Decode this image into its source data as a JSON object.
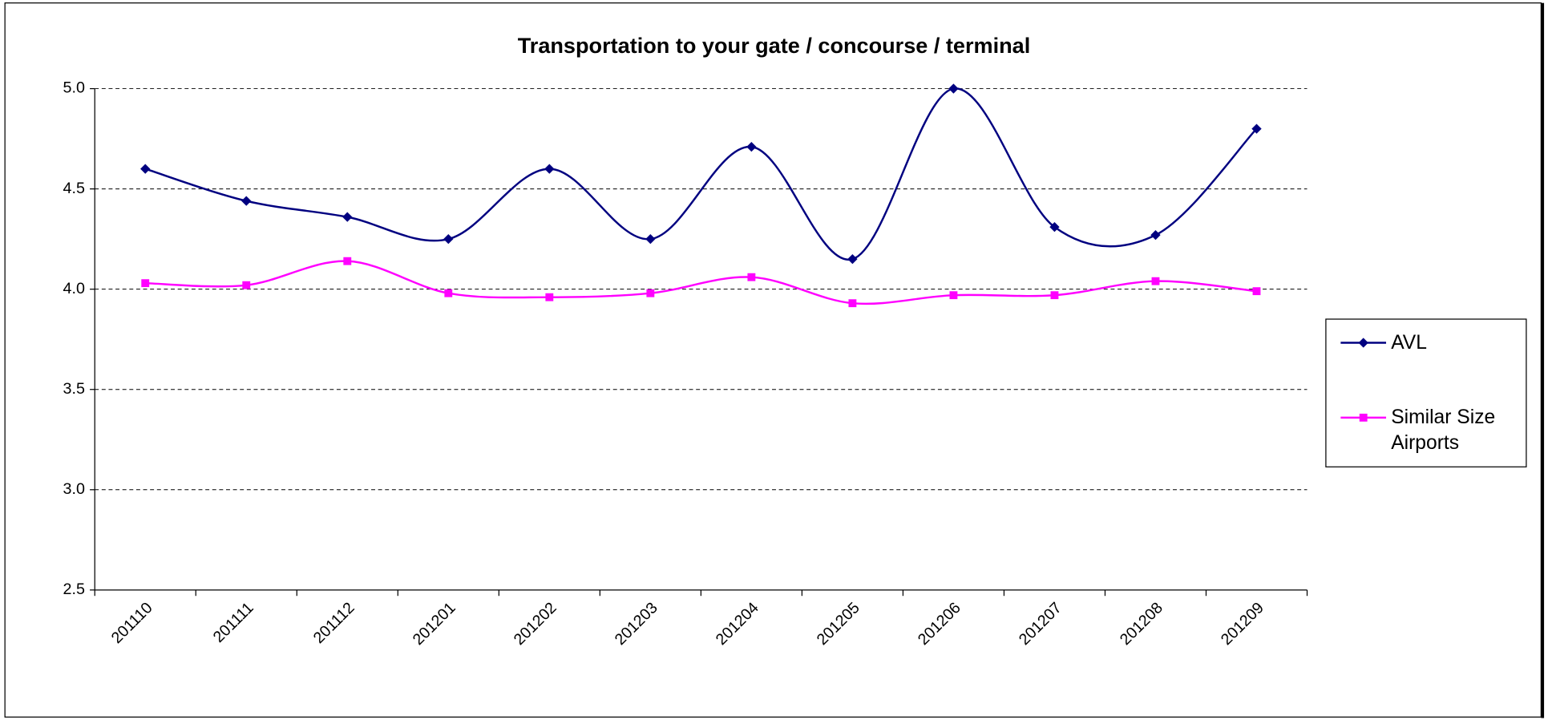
{
  "chart_data": {
    "type": "line",
    "title": "Transportation to your gate / concourse / terminal",
    "categories": [
      "201110",
      "201111",
      "201112",
      "201201",
      "201202",
      "201203",
      "201204",
      "201205",
      "201206",
      "201207",
      "201208",
      "201209"
    ],
    "series": [
      {
        "name": "AVL",
        "color": "#000080",
        "marker": "diamond",
        "values": [
          4.6,
          4.44,
          4.36,
          4.25,
          4.6,
          4.25,
          4.71,
          4.15,
          5.0,
          4.31,
          4.27,
          4.8
        ]
      },
      {
        "name": "Similar Size Airports",
        "color": "#ff00ff",
        "marker": "square",
        "values": [
          4.03,
          4.02,
          4.14,
          3.98,
          3.96,
          3.98,
          4.06,
          3.93,
          3.97,
          3.97,
          4.04,
          3.99
        ]
      }
    ],
    "ylim": [
      2.5,
      5.0
    ],
    "yticks": [
      2.5,
      {
        "value": 3,
        "label": "3.0"
      },
      3.5,
      {
        "value": 4,
        "label": "4.0"
      },
      4.5,
      {
        "value": 5,
        "label": "5.0"
      }
    ],
    "grid": true,
    "legend": "right",
    "smooth": true
  }
}
